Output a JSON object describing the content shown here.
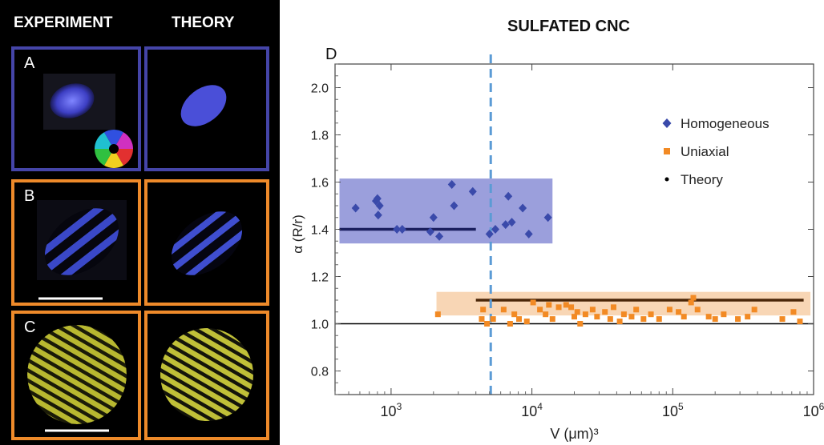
{
  "left_panel": {
    "columns": [
      "EXPERIMENT",
      "THEORY"
    ],
    "rows": [
      {
        "label": "A",
        "border_color": "#4545a8"
      },
      {
        "label": "B",
        "border_color": "#ee8a2a"
      },
      {
        "label": "C",
        "border_color": "#ee8a2a"
      }
    ]
  },
  "chart_data": {
    "type": "scatter",
    "panel_label": "D",
    "title": "SULFATED CNC",
    "xlabel": "V (μm)³",
    "ylabel": "α (R/r)",
    "xscale": "log",
    "xlim": [
      400,
      1000000
    ],
    "ylim": [
      0.7,
      2.1
    ],
    "xticks": [
      1000,
      10000,
      100000,
      1000000
    ],
    "xtick_labels": [
      {
        "base": "10",
        "exp": "3"
      },
      {
        "base": "10",
        "exp": "4"
      },
      {
        "base": "10",
        "exp": "5"
      },
      {
        "base": "10",
        "exp": "6"
      }
    ],
    "yticks": [
      "0.8",
      "1.0",
      "1.2",
      "1.4",
      "1.6",
      "1.8",
      "2.0"
    ],
    "legend_position": "top-right",
    "vline_x": 5100,
    "vline_color": "#5b9bd5",
    "hline_y": 1.0,
    "bands": [
      {
        "series": "Homogeneous",
        "x": [
          430,
          14000
        ],
        "y": [
          1.34,
          1.615
        ],
        "color": "#7a7fd0"
      },
      {
        "series": "Uniaxial",
        "x": [
          2100,
          950000
        ],
        "y": [
          1.035,
          1.135
        ],
        "color": "#f5c89c"
      }
    ],
    "theory_lines": [
      {
        "x": [
          430,
          4000
        ],
        "y": 1.4,
        "color": "#1b1f5e"
      },
      {
        "x": [
          4000,
          850000
        ],
        "y": 1.1,
        "color": "#4a2608"
      }
    ],
    "series": [
      {
        "name": "Homogeneous",
        "marker": "diamond",
        "color": "#3a4aaa",
        "points": [
          [
            560,
            1.49
          ],
          [
            780,
            1.52
          ],
          [
            800,
            1.53
          ],
          [
            810,
            1.46
          ],
          [
            830,
            1.5
          ],
          [
            1100,
            1.4
          ],
          [
            1200,
            1.4
          ],
          [
            1900,
            1.39
          ],
          [
            2000,
            1.45
          ],
          [
            2200,
            1.37
          ],
          [
            2700,
            1.59
          ],
          [
            2800,
            1.5
          ],
          [
            3800,
            1.56
          ],
          [
            5000,
            1.38
          ],
          [
            5500,
            1.4
          ],
          [
            6500,
            1.42
          ],
          [
            6800,
            1.54
          ],
          [
            7200,
            1.43
          ],
          [
            8600,
            1.49
          ],
          [
            9500,
            1.38
          ],
          [
            13000,
            1.45
          ]
        ]
      },
      {
        "name": "Uniaxial",
        "marker": "square",
        "color": "#f28a24",
        "points": [
          [
            2150,
            1.04
          ],
          [
            4400,
            1.02
          ],
          [
            4500,
            1.06
          ],
          [
            4800,
            1.0
          ],
          [
            5300,
            1.02
          ],
          [
            6300,
            1.06
          ],
          [
            7000,
            1.0
          ],
          [
            7500,
            1.04
          ],
          [
            8100,
            1.02
          ],
          [
            9200,
            1.01
          ],
          [
            10200,
            1.09
          ],
          [
            11400,
            1.06
          ],
          [
            12500,
            1.04
          ],
          [
            13200,
            1.08
          ],
          [
            14000,
            1.02
          ],
          [
            15500,
            1.07
          ],
          [
            17500,
            1.08
          ],
          [
            19000,
            1.07
          ],
          [
            20000,
            1.03
          ],
          [
            21000,
            1.05
          ],
          [
            22000,
            1.0
          ],
          [
            24000,
            1.04
          ],
          [
            27000,
            1.06
          ],
          [
            29000,
            1.03
          ],
          [
            33000,
            1.05
          ],
          [
            36000,
            1.02
          ],
          [
            38000,
            1.07
          ],
          [
            42000,
            1.01
          ],
          [
            45000,
            1.04
          ],
          [
            51000,
            1.03
          ],
          [
            55000,
            1.06
          ],
          [
            62000,
            1.02
          ],
          [
            70000,
            1.04
          ],
          [
            80000,
            1.02
          ],
          [
            95000,
            1.06
          ],
          [
            110000,
            1.05
          ],
          [
            120000,
            1.03
          ],
          [
            135000,
            1.09
          ],
          [
            140000,
            1.11
          ],
          [
            150000,
            1.06
          ],
          [
            180000,
            1.03
          ],
          [
            200000,
            1.02
          ],
          [
            230000,
            1.04
          ],
          [
            290000,
            1.02
          ],
          [
            340000,
            1.03
          ],
          [
            380000,
            1.06
          ],
          [
            600000,
            1.02
          ],
          [
            720000,
            1.05
          ],
          [
            800000,
            1.01
          ]
        ]
      },
      {
        "name": "Theory",
        "marker": "dot",
        "color": "#000000",
        "points": []
      }
    ]
  }
}
